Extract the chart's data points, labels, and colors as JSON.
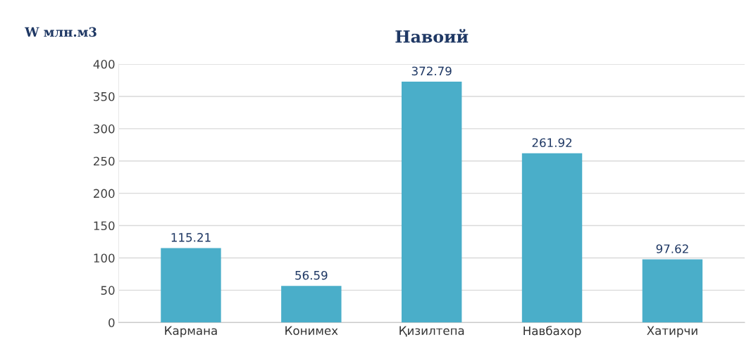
{
  "chart_data": {
    "type": "bar",
    "title": "Навоий",
    "ylabel": "W млн.м3",
    "categories": [
      "Кармана",
      "Конимех",
      "Қизилтепа",
      "Навбахор",
      "Хатирчи"
    ],
    "values": [
      115.21,
      56.59,
      372.79,
      261.92,
      97.62
    ],
    "color": "#4aaec9",
    "ylim": [
      0,
      400
    ],
    "yticks": [
      0,
      50,
      100,
      150,
      200,
      250,
      300,
      350,
      400
    ],
    "grid": "y",
    "data_labels": true,
    "legend": false
  }
}
